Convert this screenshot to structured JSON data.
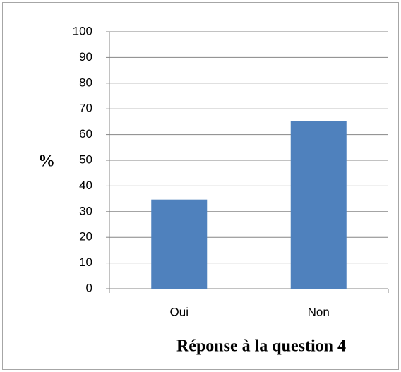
{
  "chart_data": {
    "type": "bar",
    "xlabel": "Réponse à la question 4",
    "ylabel": "%",
    "categories": [
      "Oui",
      "Non"
    ],
    "values": [
      34.7,
      65.3
    ],
    "color": "#4f81bd",
    "ylim": [
      0,
      100
    ],
    "yticks": [
      0,
      10,
      20,
      30,
      40,
      50,
      60,
      70,
      80,
      90,
      100
    ],
    "grid": true
  }
}
